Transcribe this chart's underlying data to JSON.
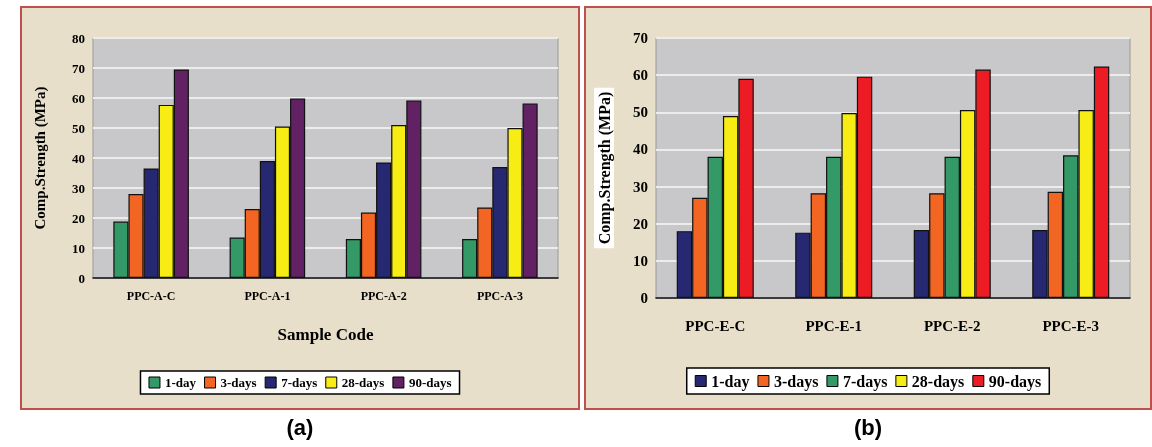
{
  "chart_data": [
    {
      "type": "bar",
      "ylabel": "Comp.Strength (MPa)",
      "xlabel": "Sample Code",
      "categories": [
        "PPC-A-C",
        "PPC-A-1",
        "PPC-A-2",
        "PPC-A-3"
      ],
      "ylim": [
        0,
        80
      ],
      "yticks": [
        0,
        10,
        20,
        30,
        40,
        50,
        60,
        70,
        80
      ],
      "grid": "y",
      "legend": "bottom",
      "annotations": [
        "(a)"
      ],
      "series": [
        {
          "name": "1-day",
          "color": "#339966",
          "values": [
            18.8,
            13.5,
            13,
            13
          ]
        },
        {
          "name": "3-days",
          "color": "#f26522",
          "values": [
            28,
            23,
            21.8,
            23.5
          ]
        },
        {
          "name": "7-days",
          "color": "#262872",
          "values": [
            36.5,
            39,
            38.5,
            37
          ]
        },
        {
          "name": "28-days",
          "color": "#f7ec13",
          "values": [
            57.7,
            50.5,
            51,
            50
          ]
        },
        {
          "name": "90-days",
          "color": "#612163",
          "values": [
            69.5,
            59.8,
            59.2,
            58.2
          ]
        }
      ]
    },
    {
      "type": "bar",
      "ylabel": "Comp.Strength (MPa)",
      "categories": [
        "PPC-E-C",
        "PPC-E-1",
        "PPC-E-2",
        "PPC-E-3"
      ],
      "ylim": [
        0,
        70
      ],
      "yticks": [
        0,
        10,
        20,
        30,
        40,
        50,
        60,
        70
      ],
      "grid": "y",
      "legend": "bottom",
      "annotations": [
        "(b)"
      ],
      "series": [
        {
          "name": "1-day",
          "color": "#262872",
          "values": [
            18,
            17.6,
            18.3,
            18.3
          ]
        },
        {
          "name": "3-days",
          "color": "#f26522",
          "values": [
            27,
            28.2,
            28.2,
            28.6
          ]
        },
        {
          "name": "7-days",
          "color": "#339966",
          "values": [
            38,
            38,
            38,
            38.4
          ]
        },
        {
          "name": "28-days",
          "color": "#f7ec13",
          "values": [
            49,
            49.8,
            50.6,
            50.6
          ]
        },
        {
          "name": "90-days",
          "color": "#ed1c24",
          "values": [
            59,
            59.6,
            61.5,
            62.3
          ]
        }
      ]
    }
  ]
}
